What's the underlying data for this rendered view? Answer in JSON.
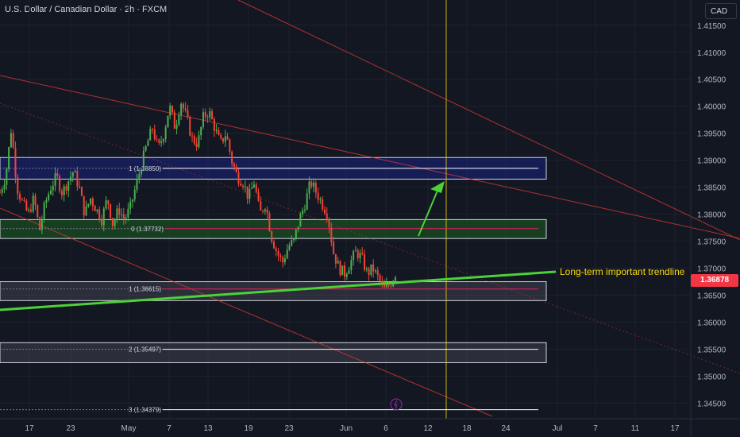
{
  "header": {
    "title": "U.S. Dollar / Canadian Dollar · 2h · FXCM",
    "currency": "CAD"
  },
  "price_tag": "1.36878",
  "chart_data": {
    "type": "candlestick",
    "symbol": "U.S. Dollar / Canadian Dollar",
    "interval": "2h",
    "source": "FXCM",
    "ylim": [
      1.343,
      1.4185
    ],
    "y_ticks": [
      "1.41500",
      "1.41000",
      "1.40500",
      "1.40000",
      "1.39500",
      "1.39000",
      "1.38500",
      "1.38000",
      "1.37500",
      "1.37000",
      "1.36500",
      "1.36000",
      "1.35500",
      "1.35000",
      "1.34500"
    ],
    "x_ticks": [
      "17",
      "23",
      "May",
      "7",
      "13",
      "19",
      "23",
      "Jun",
      "6",
      "12",
      "18",
      "24",
      "Jul",
      "7",
      "11",
      "17"
    ],
    "current_price": 1.36878,
    "fib_levels": [
      {
        "label": "1 (1.38850)",
        "value": 1.3885
      },
      {
        "label": "0 (1.37732)",
        "value": 1.37732
      },
      {
        "label": "1 (1.36615)",
        "value": 1.36615
      },
      {
        "label": "2 (1.35497)",
        "value": 1.35497
      },
      {
        "label": "3 (1.34379)",
        "value": 1.34379
      }
    ],
    "annotation": "Long-term important trendline",
    "zones": [
      {
        "name": "resistance",
        "from": 1.3865,
        "to": 1.3905,
        "color": "#1a237e"
      },
      {
        "name": "support-green",
        "from": 1.3755,
        "to": 1.379,
        "color": "#1b5e20"
      },
      {
        "name": "zone-3",
        "from": 1.364,
        "to": 1.3675,
        "color": "#434651"
      },
      {
        "name": "zone-4",
        "from": 1.3525,
        "to": 1.3562,
        "color": "#434651"
      }
    ],
    "series": [
      {
        "type": "close_path",
        "values": [
          1.384,
          1.387,
          1.396,
          1.385,
          1.382,
          1.38,
          1.383,
          1.377,
          1.382,
          1.385,
          1.387,
          1.384,
          1.386,
          1.388,
          1.385,
          1.38,
          1.383,
          1.381,
          1.379,
          1.383,
          1.378,
          1.381,
          1.379,
          1.381,
          1.385,
          1.389,
          1.393,
          1.396,
          1.392,
          1.395,
          1.4,
          1.396,
          1.401,
          1.398,
          1.394,
          1.393,
          1.398,
          1.399,
          1.396,
          1.393,
          1.395,
          1.39,
          1.387,
          1.386,
          1.383,
          1.386,
          1.38,
          1.382,
          1.376,
          1.373,
          1.371,
          1.374,
          1.375,
          1.379,
          1.382,
          1.386,
          1.384,
          1.382,
          1.38,
          1.373,
          1.37,
          1.369,
          1.371,
          1.373,
          1.372,
          1.369,
          1.37,
          1.368,
          1.366,
          1.367,
          1.369
        ]
      }
    ]
  }
}
